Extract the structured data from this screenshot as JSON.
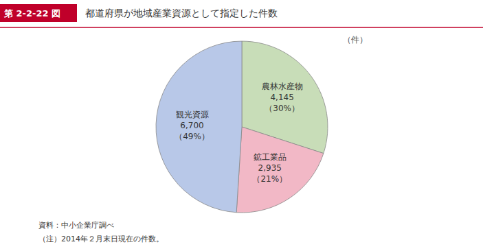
{
  "chart_data": {
    "type": "pie",
    "title": "第 2-2-22 図",
    "subtitle": "都道府県が地域産業資源として指定した件数",
    "categories": [
      "農林水産物",
      "鉱工業品",
      "観光資源"
    ],
    "values": [
      30,
      21,
      49
    ],
    "value_labels": [
      "（30%）",
      "（21%）",
      "（49%）"
    ],
    "counts": [
      4145,
      2935,
      6700
    ],
    "count_labels": [
      "4,145",
      "2,935",
      "6,700"
    ],
    "colors": [
      "#c8ddb8",
      "#f2b8c6",
      "#b8c8e8"
    ],
    "data_labels": true,
    "annotations": [
      "（件）",
      "資料：中小企業庁調べ",
      "（注）2014年２月末日現在の件数。"
    ]
  }
}
